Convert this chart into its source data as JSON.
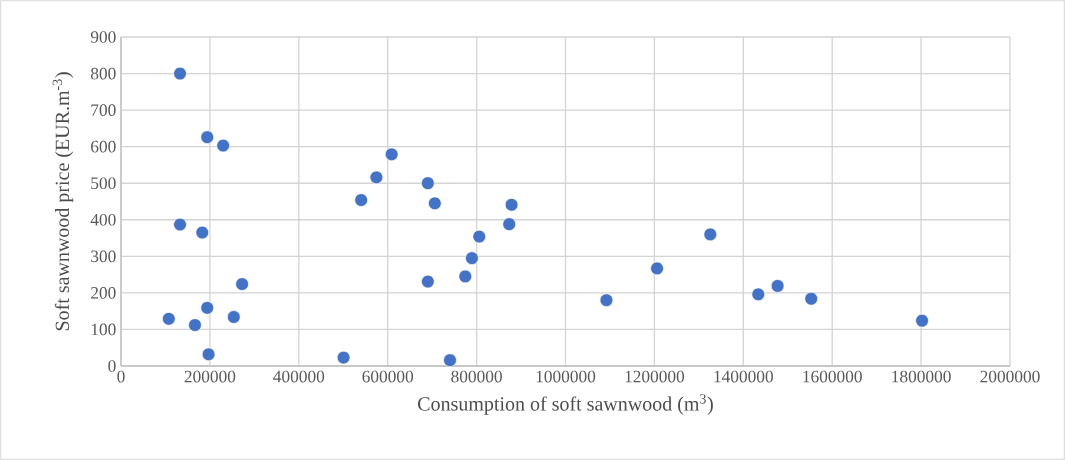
{
  "chart_data": {
    "type": "scatter",
    "xlabel": "Consumption of soft sawnwood (m$^{3}$)",
    "ylabel": "Soft sawnwood price (EUR.m$^{-3}$)",
    "x": [
      132800,
      194000,
      229800,
      132800,
      182800,
      272400,
      107500,
      166400,
      194000,
      253700,
      197000,
      500700,
      540300,
      574600,
      608900,
      690300,
      706000,
      690300,
      740100,
      774500,
      789500,
      806000,
      873400,
      878700,
      1092100,
      1206000,
      1325800,
      1433700,
      1477200,
      1552800,
      1802200
    ],
    "values": [
      800,
      626,
      603,
      387,
      365,
      224,
      129,
      112,
      159,
      134,
      32,
      23,
      454,
      516,
      579,
      500,
      445,
      231,
      16,
      245,
      295,
      354,
      388,
      441,
      180,
      267,
      360,
      196,
      219,
      184,
      124
    ],
    "color": "#4472c4",
    "marker": "circle",
    "grid": true,
    "xlim": [
      0,
      2000000
    ],
    "xticks": [
      0,
      200000,
      400000,
      600000,
      800000,
      1000000,
      1200000,
      1400000,
      1600000,
      1800000,
      2000000
    ],
    "ylim": [
      0,
      900
    ],
    "yticks": [
      0,
      100,
      200,
      300,
      400,
      500,
      600,
      700,
      800,
      900
    ]
  }
}
